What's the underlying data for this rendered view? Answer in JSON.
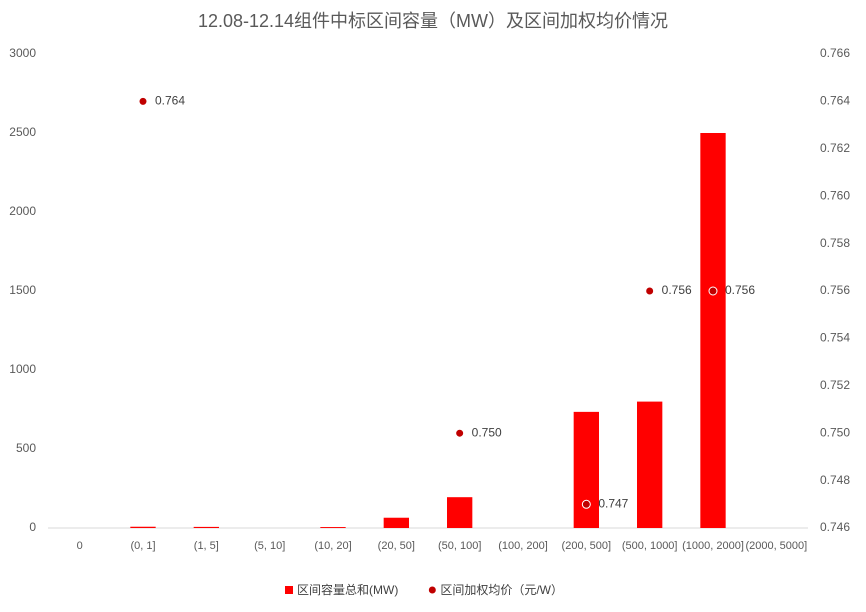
{
  "chart_data": {
    "type": "bar+scatter",
    "title": "12.08-12.14组件中标区间容量（MW）及区间加权均价情况",
    "categories": [
      "0",
      "(0, 1]",
      "(1, 5]",
      "(5, 10]",
      "(10, 20]",
      "(20, 50]",
      "(50, 100]",
      "(100, 200]",
      "(200, 500]",
      "(500, 1000]",
      "(1000, 2000]",
      "(2000, 5000]"
    ],
    "series": [
      {
        "name": "区间容量总和(MW)",
        "type": "bar",
        "color": "#ff0000",
        "values": [
          0,
          8,
          7,
          0,
          6,
          65,
          195,
          0,
          735,
          800,
          2500,
          0
        ]
      },
      {
        "name": "区间加权均价（元/W）",
        "type": "scatter",
        "axis": "y2",
        "color": "#c00000",
        "values": [
          null,
          0.764,
          null,
          null,
          null,
          null,
          0.75,
          null,
          0.747,
          0.756,
          0.756,
          null
        ],
        "value_labels": [
          null,
          "0.764",
          null,
          null,
          null,
          null,
          "0.750",
          null,
          "0.747",
          "0.756",
          "0.756",
          null
        ]
      }
    ],
    "ylim": [
      0,
      3000
    ],
    "yticks": [
      0,
      500,
      1000,
      1500,
      2000,
      2500,
      3000
    ],
    "y2lim": [
      0.746,
      0.766
    ],
    "y2ticks": [
      0.746,
      0.748,
      {
        "value": 0.75,
        "label": "0.750"
      },
      0.752,
      0.754,
      0.756,
      0.758,
      {
        "value": 0.76,
        "label": "0.760"
      },
      0.762,
      0.764,
      0.766
    ],
    "grid": false,
    "legend": "bottom"
  }
}
